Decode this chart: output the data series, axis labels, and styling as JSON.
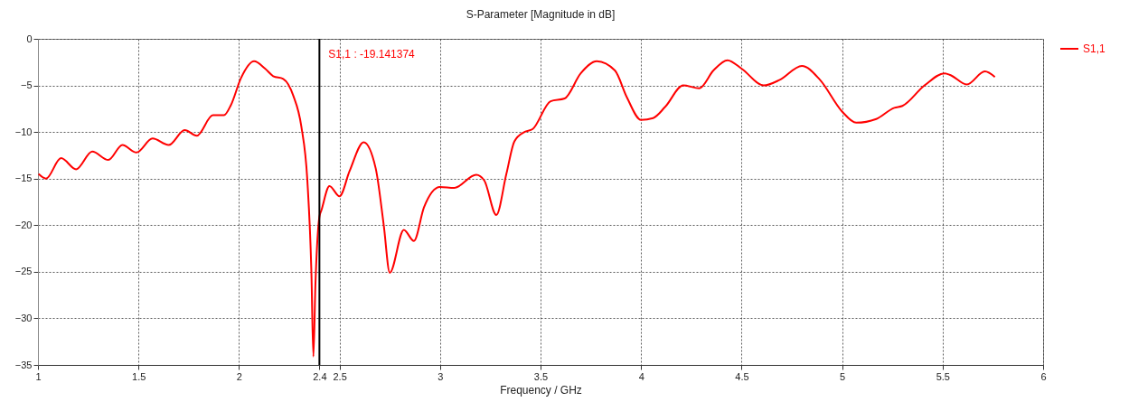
{
  "chart_data": {
    "type": "line",
    "title": "S-Parameter [Magnitude in dB]",
    "xlabel": "Frequency / GHz",
    "xlim": [
      1,
      6
    ],
    "xticks": [
      1,
      1.5,
      2,
      2.4,
      2.5,
      3,
      3.5,
      4,
      4.5,
      5,
      5.5,
      6
    ],
    "ylim": [
      -35,
      0
    ],
    "yticks": [
      0,
      -5,
      -10,
      -15,
      -20,
      -25,
      -30,
      -35
    ],
    "grid": true,
    "legend": "right",
    "line_style": "solid",
    "ref_lines": [
      {
        "axis": "x",
        "value": 2.4,
        "color": "#000000"
      }
    ],
    "annotations": [
      "S1,1 : -19.141374"
    ],
    "series": [
      {
        "name": "S1,1",
        "color": "#ff0000",
        "x": [
          1.003,
          1.04,
          1.115,
          1.19,
          1.27,
          1.35,
          1.42,
          1.49,
          1.57,
          1.65,
          1.73,
          1.79,
          1.87,
          1.925,
          1.96,
          2.01,
          2.075,
          2.13,
          2.17,
          2.22,
          2.27,
          2.31,
          2.34,
          2.36,
          2.37,
          2.38,
          2.4,
          2.41,
          2.45,
          2.5,
          2.55,
          2.62,
          2.68,
          2.72,
          2.75,
          2.82,
          2.87,
          2.92,
          3.0,
          3.07,
          3.18,
          3.22,
          3.28,
          3.33,
          3.37,
          3.42,
          3.46,
          3.55,
          3.62,
          3.7,
          3.78,
          3.87,
          3.93,
          4.0,
          4.06,
          4.12,
          4.21,
          4.29,
          4.36,
          4.43,
          4.5,
          4.61,
          4.69,
          4.8,
          4.89,
          5.0,
          5.07,
          5.17,
          5.26,
          5.3,
          5.41,
          5.51,
          5.54,
          5.62,
          5.71,
          5.76
        ],
        "values": [
          -14.5,
          -15.0,
          -12.8,
          -14.0,
          -12.1,
          -13.0,
          -11.4,
          -12.2,
          -10.7,
          -11.4,
          -9.8,
          -10.4,
          -8.2,
          -8.2,
          -7.1,
          -4.2,
          -2.4,
          -3.2,
          -4.0,
          -4.3,
          -6.1,
          -9.4,
          -15.2,
          -24.9,
          -34.1,
          -26.5,
          -19.1,
          -18.4,
          -15.8,
          -16.9,
          -14.2,
          -11.1,
          -13.9,
          -20.0,
          -25.1,
          -20.5,
          -21.7,
          -18.1,
          -15.9,
          -16.0,
          -14.6,
          -15.2,
          -18.9,
          -14.5,
          -11.0,
          -10.0,
          -9.7,
          -6.7,
          -6.4,
          -3.7,
          -2.4,
          -3.4,
          -6.3,
          -8.7,
          -8.5,
          -7.3,
          -5.0,
          -5.3,
          -3.4,
          -2.3,
          -3.2,
          -5.0,
          -4.4,
          -2.9,
          -4.4,
          -7.8,
          -9.0,
          -8.6,
          -7.4,
          -7.2,
          -5.0,
          -3.7,
          -3.9,
          -4.9,
          -3.5,
          -4.1
        ]
      }
    ]
  }
}
